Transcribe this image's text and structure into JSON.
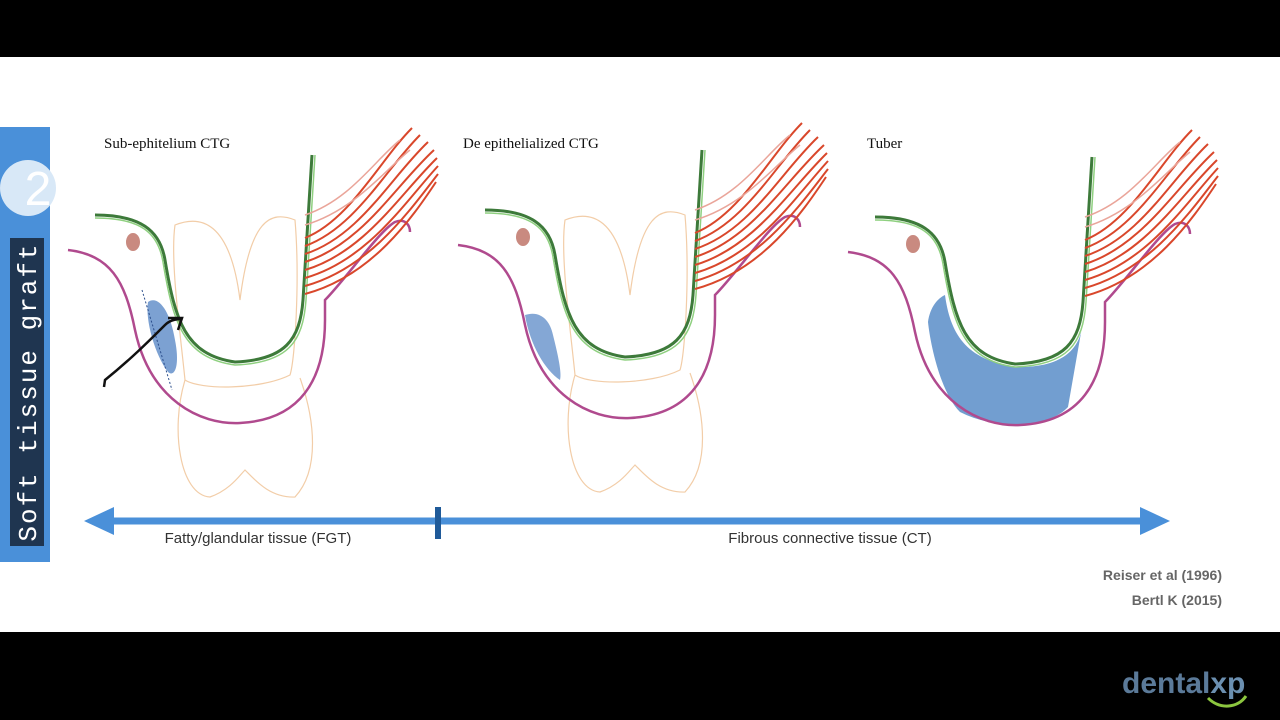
{
  "side_tab": {
    "number": "2",
    "label": "Soft tissue graft"
  },
  "panels": [
    {
      "title": "Sub-ephitelium CTG"
    },
    {
      "title": "De epithelialized CTG"
    },
    {
      "title": "Tuber"
    }
  ],
  "scale": {
    "left_label": "Fatty/glandular tissue (FGT)",
    "right_label": "Fibrous connective tissue (CT)"
  },
  "references": [
    "Reiser et al (1996)",
    "Bertl K (2015)"
  ],
  "logo": {
    "part1": "dental",
    "part2": "xp"
  }
}
